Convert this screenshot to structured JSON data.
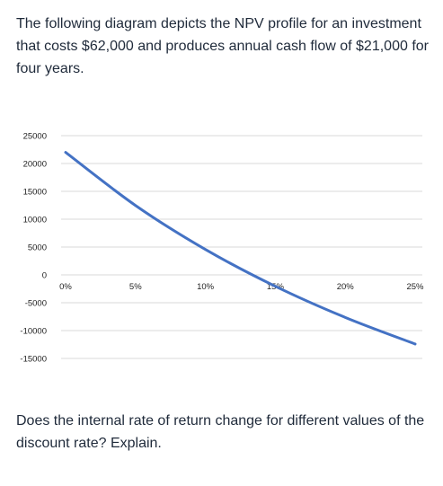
{
  "question": {
    "intro": "The following diagram depicts the NPV profile for an investment that costs $62,000 and produces annual cash flow of $21,000 for four years.",
    "prompt": "Does the internal rate of return change for different values of the discount rate? Explain."
  },
  "chart_data": {
    "type": "line",
    "title": "",
    "xlabel": "",
    "ylabel": "",
    "x": [
      0,
      5,
      10,
      15,
      20,
      25
    ],
    "x_tick_labels": [
      "0%",
      "5%",
      "10%",
      "15%",
      "20%",
      "25%"
    ],
    "y_ticks": [
      25000,
      20000,
      15000,
      10000,
      5000,
      0,
      -5000,
      -10000,
      -15000
    ],
    "ylim": [
      -15000,
      25000
    ],
    "xlim": [
      0,
      25
    ],
    "grid": true,
    "series": [
      {
        "name": "",
        "color": "#4472C4",
        "x": [
          0,
          5,
          10,
          15,
          20,
          25
        ],
        "values": [
          22000,
          12465,
          4568,
          -2046,
          -7636,
          -12405
        ]
      }
    ]
  }
}
